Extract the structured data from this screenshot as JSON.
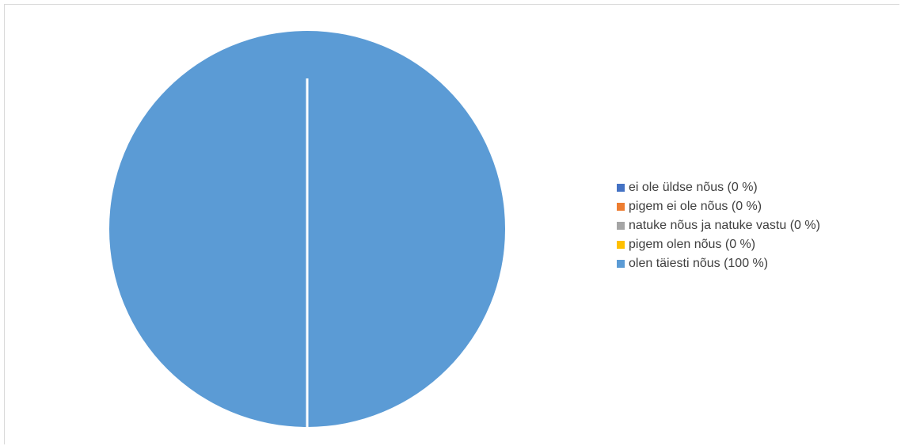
{
  "chart_data": {
    "type": "pie",
    "title": "",
    "categories": [
      "ei ole üldse nõus",
      "pigem ei ole nõus",
      "natuke nõus ja natuke vastu",
      "pigem olen nõus",
      "olen täiesti nõus"
    ],
    "values": [
      0,
      0,
      0,
      0,
      100
    ],
    "colors": [
      "#4472c4",
      "#ed7d31",
      "#a5a5a5",
      "#ffc000",
      "#5b9bd5"
    ],
    "legend_position": "right",
    "legend": [
      {
        "label": "ei ole üldse nõus (0 %)",
        "color": "#4472c4"
      },
      {
        "label": "pigem ei ole nõus (0 %)",
        "color": "#ed7d31"
      },
      {
        "label": "natuke nõus ja natuke vastu (0 %)",
        "color": "#a5a5a5"
      },
      {
        "label": "pigem olen nõus (0 %)",
        "color": "#ffc000"
      },
      {
        "label": "olen täiesti nõus (100 %)",
        "color": "#5b9bd5"
      }
    ]
  }
}
